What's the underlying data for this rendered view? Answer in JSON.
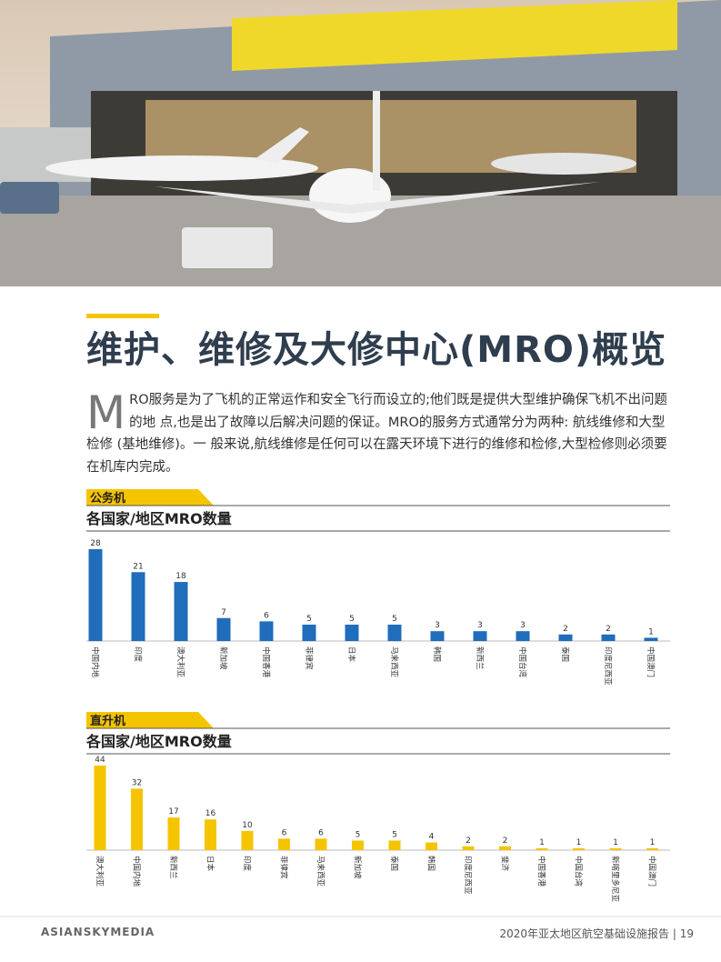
{
  "header": {
    "title": "维护、维修及大修中心(MRO)概览"
  },
  "intro": {
    "drop_cap": "M",
    "text": "RO服务是为了飞机的正常运作和安全飞行而设立的;他们既是提供大型维护确保飞机不出问题的地  点,也是出了故障以后解决问题的保证。MRO的服务方式通常分为两种: 航线维修和大型检修 (基地维修)。一 般来说,航线维修是任何可以在露天环境下进行的维修和检修,大型检修则必须要在机库内完成。"
  },
  "chart_data": [
    {
      "type": "bar",
      "section": "公务机",
      "title": "各国家/地区MRO数量",
      "color": "#1f6dbb",
      "categories": [
        "中国内地",
        "印度",
        "澳大利亚",
        "新加坡",
        "中国香港",
        "菲律宾",
        "日本",
        "马来西亚",
        "韩国",
        "新西兰",
        "中国台湾",
        "泰国",
        "印度尼西亚",
        "中国澳门"
      ],
      "values": [
        28,
        21,
        18,
        7,
        6,
        5,
        5,
        5,
        3,
        3,
        3,
        2,
        2,
        1
      ]
    },
    {
      "type": "bar",
      "section": "直升机",
      "title": "各国家/地区MRO数量",
      "color": "#f5c400",
      "categories": [
        "澳大利亚",
        "中国内地",
        "新西兰",
        "日本",
        "印度",
        "菲律宾",
        "马来西亚",
        "新加坡",
        "泰国",
        "韩国",
        "印度尼西亚",
        "斐济",
        "中国香港",
        "中国台湾",
        "新喀里多尼亚",
        "中国澳门"
      ],
      "values": [
        44,
        32,
        17,
        16,
        10,
        6,
        6,
        5,
        5,
        4,
        2,
        2,
        1,
        1,
        1,
        1
      ]
    }
  ],
  "footer": {
    "brand": "ASIANSKYMEDIA",
    "report": "2020年亚太地区航空基础设施报告",
    "separator": "|",
    "page": "19"
  }
}
